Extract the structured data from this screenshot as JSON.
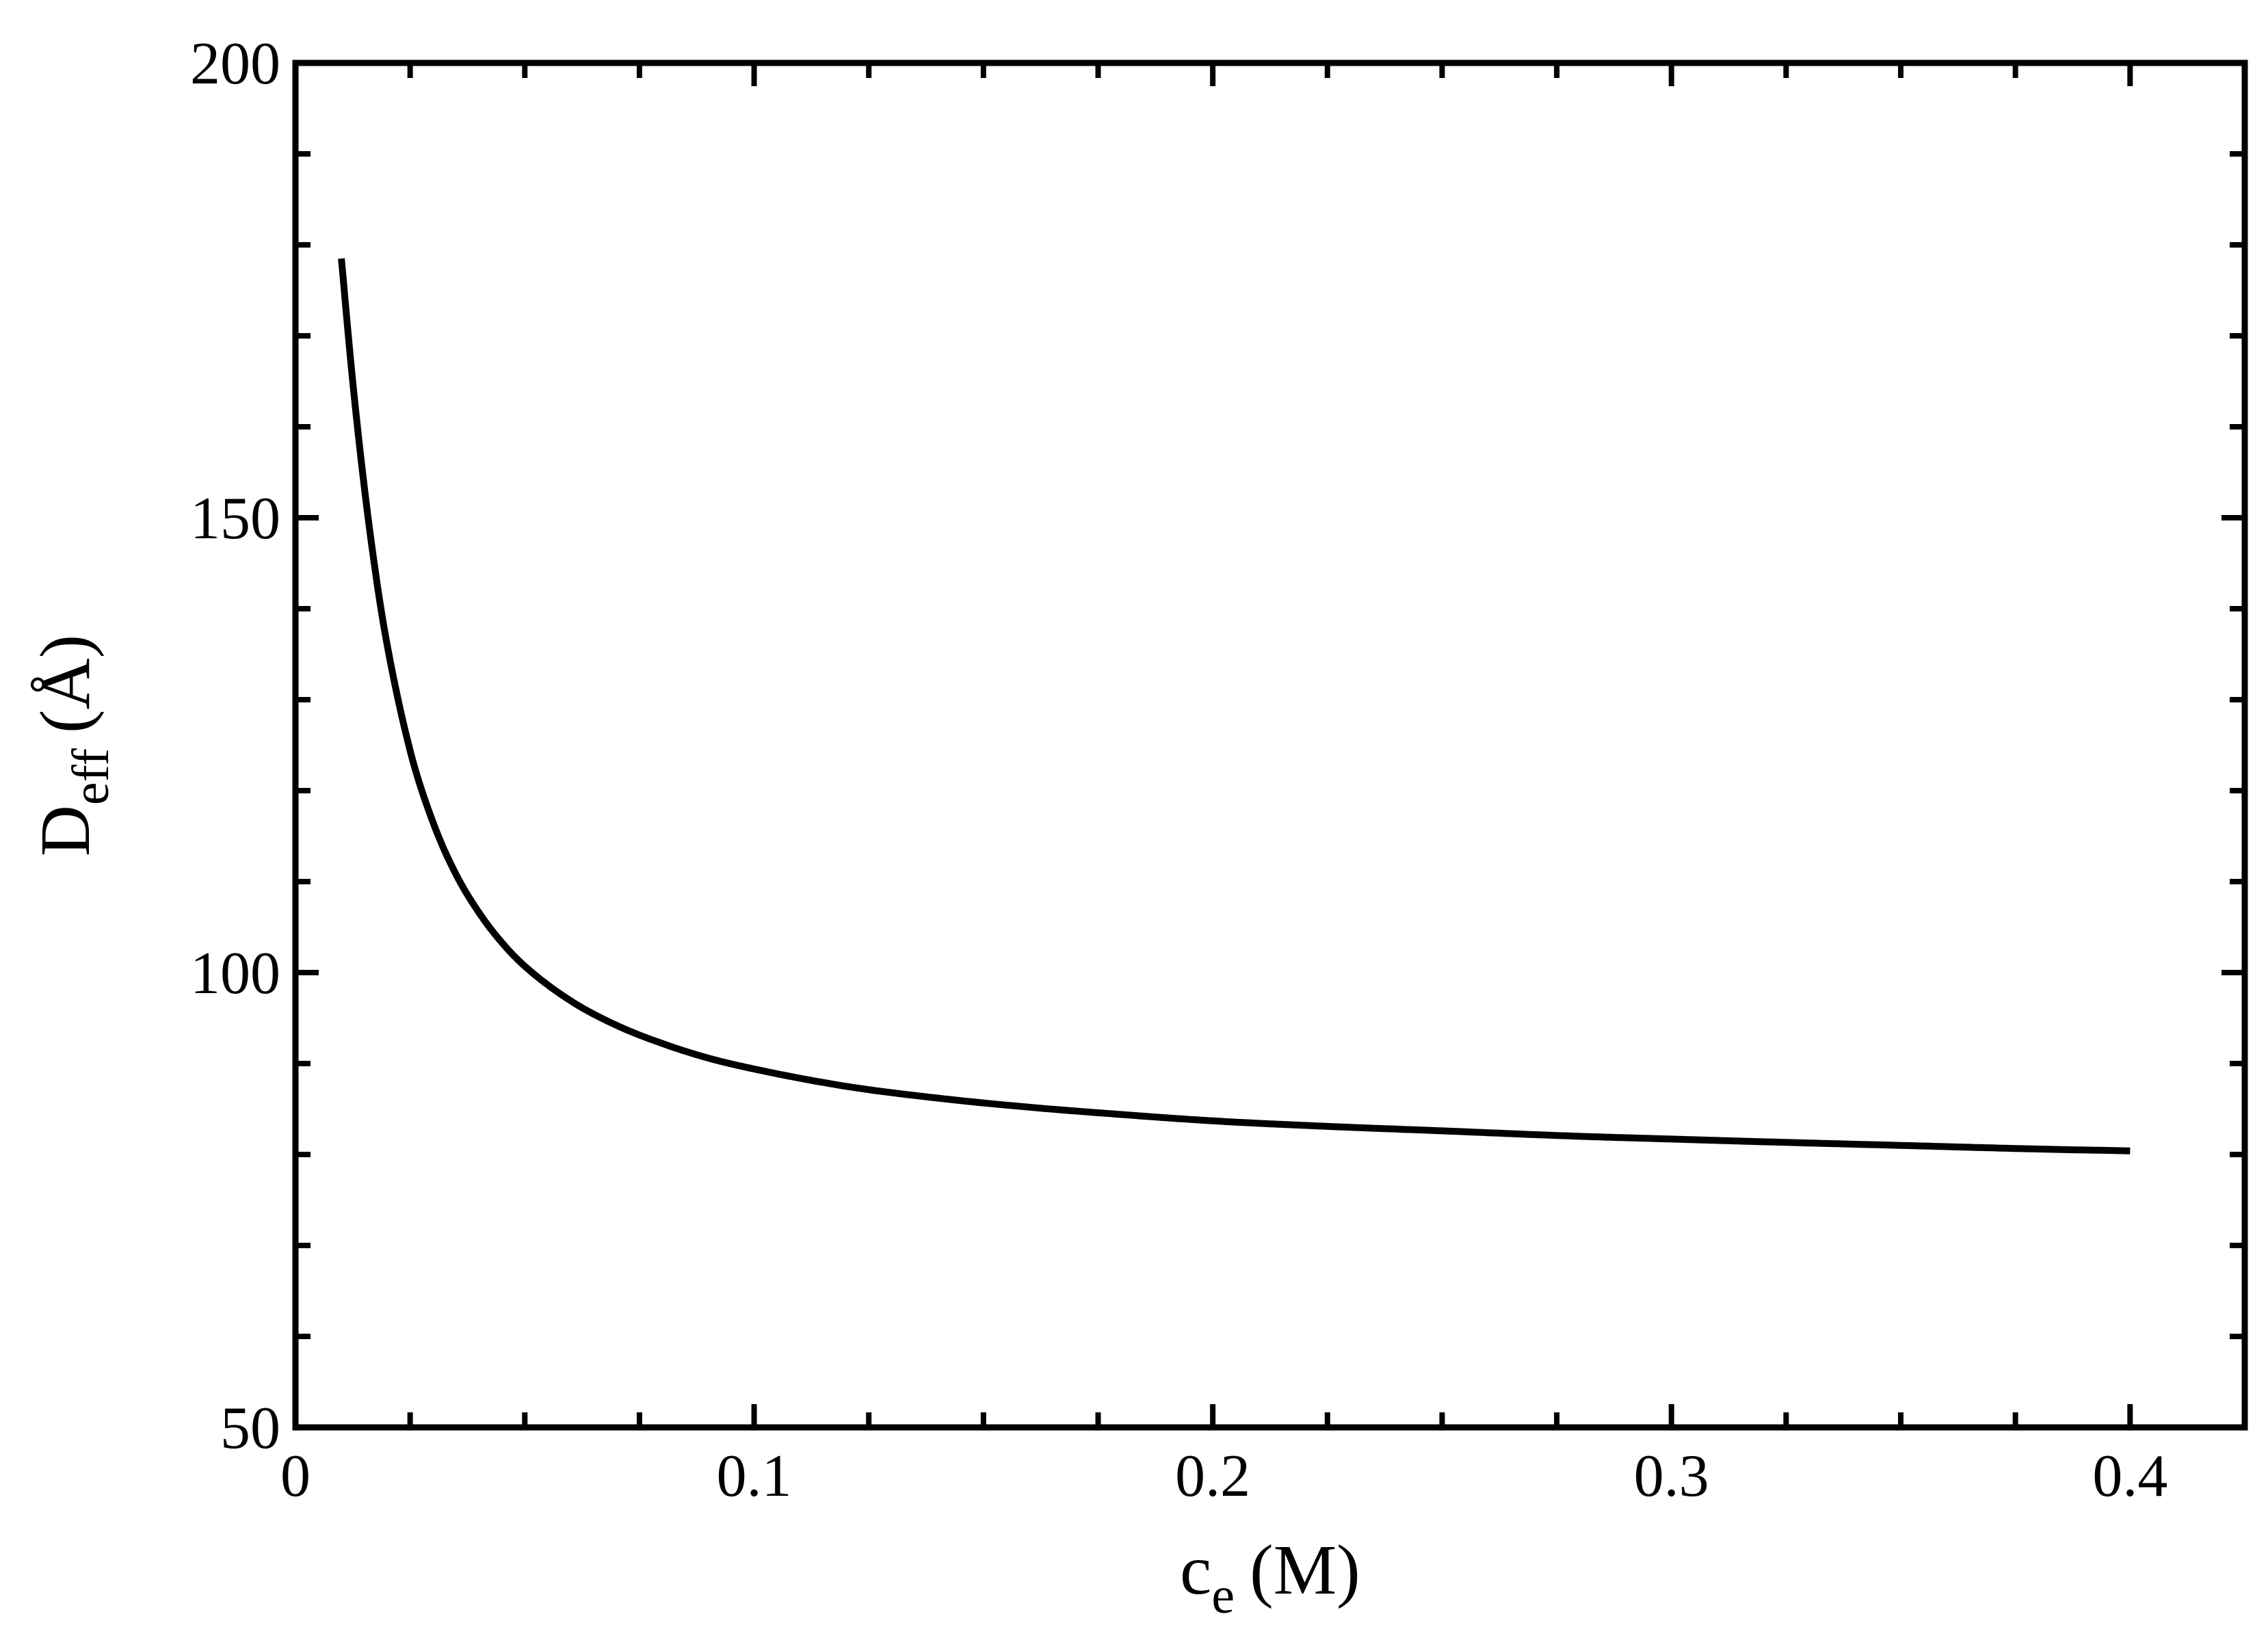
{
  "chart_data": {
    "type": "line",
    "xlabel": {
      "main": "c",
      "sub": "e",
      "unit": "(M)"
    },
    "ylabel": {
      "main": "D",
      "sub": "eff",
      "unit": "(Å)"
    },
    "xlim": [
      0,
      0.425
    ],
    "ylim": [
      50,
      200
    ],
    "x_ticks": [
      {
        "value": 0,
        "label": "0"
      },
      {
        "value": 0.1,
        "label": "0.1"
      },
      {
        "value": 0.2,
        "label": "0.2"
      },
      {
        "value": 0.3,
        "label": "0.3"
      },
      {
        "value": 0.4,
        "label": "0.4"
      }
    ],
    "x_minor_step": 0.025,
    "y_ticks": [
      {
        "value": 50,
        "label": "50"
      },
      {
        "value": 100,
        "label": "100"
      },
      {
        "value": 150,
        "label": "150"
      },
      {
        "value": 200,
        "label": "200"
      }
    ],
    "y_minor_step": 10,
    "grid": false,
    "line_color": "#000000",
    "series": [
      {
        "x": [
          0.01,
          0.0125,
          0.015,
          0.0175,
          0.02,
          0.025,
          0.03,
          0.035,
          0.04,
          0.045,
          0.05,
          0.06,
          0.07,
          0.08,
          0.09,
          0.1,
          0.12,
          0.14,
          0.16,
          0.18,
          0.2,
          0.22,
          0.25,
          0.28,
          0.3,
          0.32,
          0.35,
          0.38,
          0.4
        ],
        "y": [
          178.5,
          164.9,
          153.4,
          143.8,
          136.0,
          124.4,
          116.5,
          110.8,
          106.6,
          103.3,
          100.7,
          96.9,
          94.2,
          92.2,
          90.6,
          89.4,
          87.5,
          86.2,
          85.2,
          84.4,
          83.7,
          83.2,
          82.6,
          82.0,
          81.7,
          81.4,
          81.0,
          80.6,
          80.4
        ]
      }
    ]
  }
}
